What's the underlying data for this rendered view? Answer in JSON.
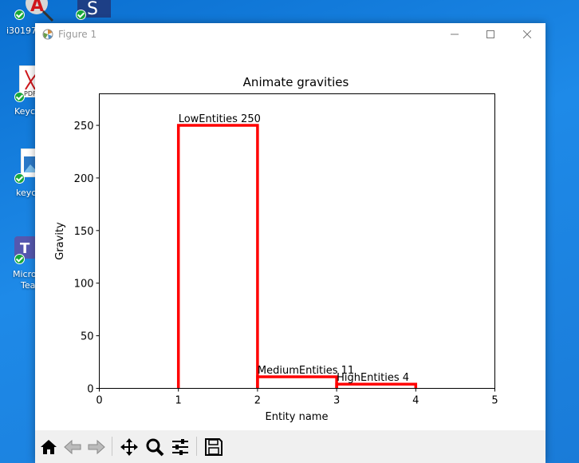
{
  "desktop": {
    "icons": [
      {
        "label": "i301974"
      },
      {
        "label": ""
      },
      {
        "label": "Keyc"
      },
      {
        "label": "keyc"
      },
      {
        "label": "Micro"
      },
      {
        "label": "Tea"
      }
    ]
  },
  "window": {
    "title": "Figure 1",
    "controls": [
      "minimize",
      "maximize",
      "close"
    ]
  },
  "toolbar": {
    "buttons": [
      "home",
      "back",
      "forward",
      "pan",
      "zoom",
      "configure-subplots",
      "save"
    ]
  },
  "chart_data": {
    "type": "bar",
    "title": "Animate gravities",
    "xlabel": "Entity name",
    "ylabel": "Gravity",
    "xlim": [
      0,
      5
    ],
    "ylim": [
      0,
      280
    ],
    "xticks": [
      "0",
      "1",
      "2",
      "3",
      "4",
      "5"
    ],
    "yticks": [
      "0",
      "50",
      "100",
      "150",
      "200",
      "250"
    ],
    "grid": false,
    "bar_style": "outline",
    "bar_color": "#ff0000",
    "bars": [
      {
        "x_start": 1,
        "x_end": 2,
        "value": 250,
        "label": "LowEntities 250"
      },
      {
        "x_start": 2,
        "x_end": 3,
        "value": 11,
        "label": "MediumEntities 11"
      },
      {
        "x_start": 3,
        "x_end": 4,
        "value": 4,
        "label": "HighEntities 4"
      }
    ]
  }
}
